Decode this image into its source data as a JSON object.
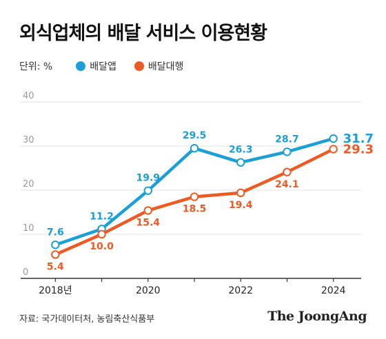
{
  "title": "외식업체의 배달 서비스 이용현황",
  "unit_label": "단위: %",
  "source": "자료: 국가데이터처, 농림축산식품부",
  "brand": "The JoongAng",
  "colors": {
    "app": "#1a9fd6",
    "agency": "#ee5a24",
    "grid": "#e2e2e2",
    "axis": "#333333",
    "tick_text": "#9a9a9a"
  },
  "chart_data": {
    "type": "line",
    "x": [
      2018,
      2019,
      2020,
      2021,
      2022,
      2023,
      2024
    ],
    "x_tick_values": [
      2018,
      2020,
      2022,
      2024
    ],
    "x_tick_labels": [
      "2018년",
      "2020",
      "2022",
      "2024"
    ],
    "xlim": [
      2017.4,
      2024.6
    ],
    "ylim": [
      0,
      40
    ],
    "y_ticks": [
      0,
      10,
      20,
      30,
      40
    ],
    "grid": true,
    "legend_position": "top-left",
    "series": [
      {
        "name": "배달앱",
        "color": "#1a9fd6",
        "values": [
          7.6,
          11.2,
          19.9,
          29.5,
          26.3,
          28.7,
          31.7
        ],
        "labels": [
          "7.6",
          "11.2",
          "19.9",
          "29.5",
          "26.3",
          "28.7",
          "31.7"
        ]
      },
      {
        "name": "배달대행",
        "color": "#ee5a24",
        "values": [
          5.4,
          10.0,
          15.4,
          18.5,
          19.4,
          24.1,
          29.3
        ],
        "labels": [
          "5.4",
          "10.0",
          "15.4",
          "18.5",
          "19.4",
          "24.1",
          "29.3"
        ]
      }
    ]
  }
}
